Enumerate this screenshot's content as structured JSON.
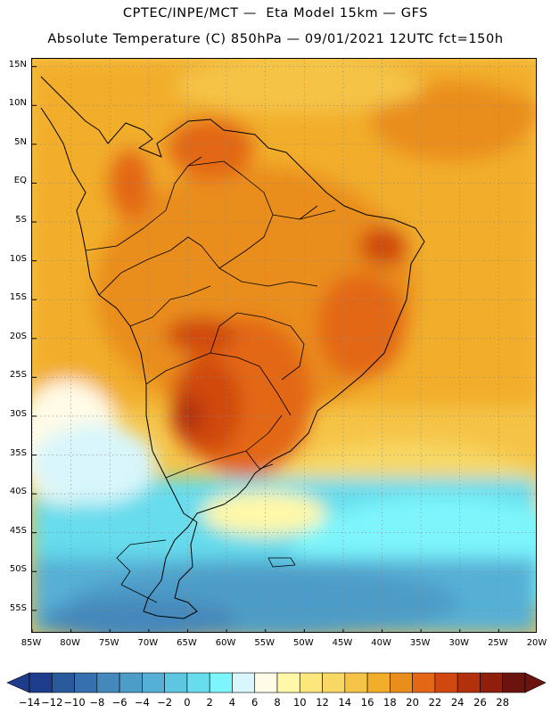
{
  "header": {
    "line1": "CPTEC/INPE/MCT —  Eta Model 15km — GFS",
    "line2": "Absolute Temperature (C) 850hPa — 09/01/2021 12UTC fct=150h"
  },
  "map": {
    "projection": "lat-lon",
    "lon_range": [
      -85,
      -20
    ],
    "lat_range": [
      -58,
      16
    ],
    "grid": true,
    "lat_ticks": [
      {
        "value": 15,
        "label": "15N"
      },
      {
        "value": 10,
        "label": "10N"
      },
      {
        "value": 5,
        "label": "5N"
      },
      {
        "value": 0,
        "label": "EQ"
      },
      {
        "value": -5,
        "label": "5S"
      },
      {
        "value": -10,
        "label": "10S"
      },
      {
        "value": -15,
        "label": "15S"
      },
      {
        "value": -20,
        "label": "20S"
      },
      {
        "value": -25,
        "label": "25S"
      },
      {
        "value": -30,
        "label": "30S"
      },
      {
        "value": -35,
        "label": "35S"
      },
      {
        "value": -40,
        "label": "40S"
      },
      {
        "value": -45,
        "label": "45S"
      },
      {
        "value": -50,
        "label": "50S"
      },
      {
        "value": -55,
        "label": "55S"
      }
    ],
    "lon_ticks": [
      {
        "value": -85,
        "label": "85W"
      },
      {
        "value": -80,
        "label": "80W"
      },
      {
        "value": -75,
        "label": "75W"
      },
      {
        "value": -70,
        "label": "70W"
      },
      {
        "value": -65,
        "label": "65W"
      },
      {
        "value": -60,
        "label": "60W"
      },
      {
        "value": -55,
        "label": "55W"
      },
      {
        "value": -50,
        "label": "50W"
      },
      {
        "value": -45,
        "label": "45W"
      },
      {
        "value": -40,
        "label": "40W"
      },
      {
        "value": -35,
        "label": "35W"
      },
      {
        "value": -30,
        "label": "30W"
      },
      {
        "value": -25,
        "label": "25W"
      },
      {
        "value": -20,
        "label": "20W"
      }
    ]
  },
  "colorbar": {
    "labels": [
      "-14",
      "-12",
      "-10",
      "-8",
      "-6",
      "-4",
      "-2",
      "0",
      "2",
      "4",
      "6",
      "8",
      "10",
      "12",
      "14",
      "16",
      "18",
      "20",
      "22",
      "24",
      "26",
      "28"
    ],
    "colors": [
      "#1e3c8c",
      "#2a5a9c",
      "#3670ae",
      "#4488bc",
      "#4e9cc8",
      "#56b0d6",
      "#5ec6e0",
      "#66dcec",
      "#7df5fb",
      "#d8f6fb",
      "#fffbe6",
      "#fff8a8",
      "#fbe77b",
      "#f8d865",
      "#f5c447",
      "#f2ad2b",
      "#e98d1c",
      "#e36715",
      "#d0480f",
      "#b3300c",
      "#8f1e0c",
      "#6b130e"
    ]
  }
}
